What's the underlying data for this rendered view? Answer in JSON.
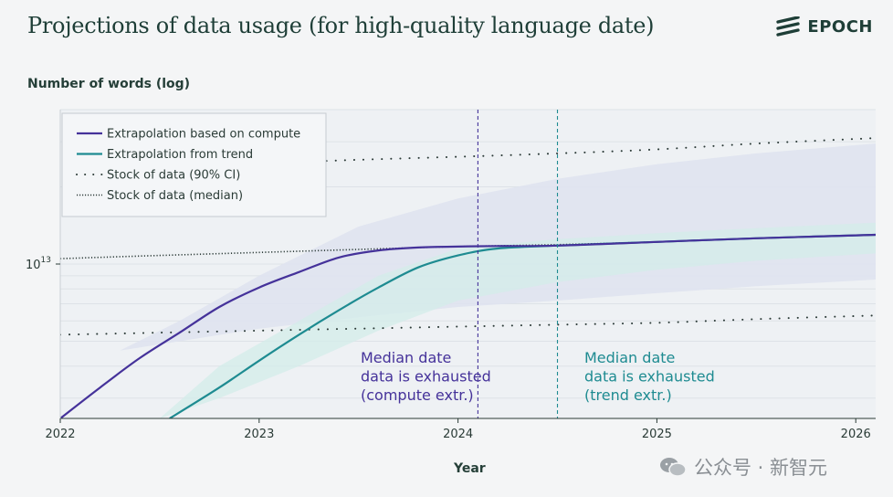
{
  "header": {
    "title": "Projections of data usage (for high-quality language date)",
    "brand": "EPOCH"
  },
  "watermark": {
    "text": "公众号 · 新智元"
  },
  "colors": {
    "compute": "#45329a",
    "trend": "#1e8b91",
    "stock": "#2b3a37",
    "band": "#d7dee8",
    "plot_bg": "#eef1f4"
  },
  "chart_data": {
    "type": "line",
    "title": "Projections of data usage (for high-quality language date)",
    "ylabel": "Number of words (log)",
    "xlabel": "Year",
    "xlim": [
      2022,
      2026.1
    ],
    "x_ticks": [
      2022,
      2023,
      2024,
      2025,
      2026
    ],
    "y_scale": "log",
    "y_tick_label": "10",
    "y_tick_exponent": "13",
    "ylim": [
      2500000000000.0,
      40000000000000.0
    ],
    "grid": "horizontal minor",
    "legend_position": "top-left",
    "legend": [
      {
        "label": "Extrapolation based on compute",
        "style": "solid",
        "color_key": "compute"
      },
      {
        "label": "Extrapolation from trend",
        "style": "solid",
        "color_key": "trend"
      },
      {
        "label": "Stock of data (90% CI)",
        "style": "dotted-sparse",
        "color_key": "stock"
      },
      {
        "label": "Stock of data (median)",
        "style": "dotted-dense",
        "color_key": "stock"
      }
    ],
    "series": [
      {
        "name": "Extrapolation based on compute",
        "x": [
          2022.0,
          2022.2,
          2022.4,
          2022.6,
          2022.8,
          2023.0,
          2023.2,
          2023.4,
          2023.6,
          2023.8,
          2024.0,
          2024.2,
          2024.5,
          2025.0,
          2025.5,
          2026.1
        ],
        "y": [
          2500000000000.0,
          3300000000000.0,
          4300000000000.0,
          5400000000000.0,
          6800000000000.0,
          8100000000000.0,
          9300000000000.0,
          10600000000000.0,
          11300000000000.0,
          11600000000000.0,
          11700000000000.0,
          11750000000000.0,
          11800000000000.0,
          12200000000000.0,
          12600000000000.0,
          13000000000000.0
        ]
      },
      {
        "name": "Extrapolation from trend",
        "x": [
          2022.55,
          2022.8,
          2023.0,
          2023.2,
          2023.4,
          2023.6,
          2023.8,
          2024.0,
          2024.2,
          2024.5,
          2025.0,
          2025.5,
          2026.1
        ],
        "y": [
          2500000000000.0,
          3300000000000.0,
          4200000000000.0,
          5300000000000.0,
          6600000000000.0,
          8100000000000.0,
          9700000000000.0,
          10800000000000.0,
          11500000000000.0,
          11800000000000.0,
          12200000000000.0,
          12600000000000.0,
          13000000000000.0
        ]
      },
      {
        "name": "Stock of data (median)",
        "x": [
          2022.0,
          2022.5,
          2023.0,
          2023.5,
          2024.0,
          2024.5,
          2025.0,
          2025.5,
          2026.1
        ],
        "y": [
          10500000000000.0,
          10800000000000.0,
          11100000000000.0,
          11400000000000.0,
          11700000000000.0,
          11900000000000.0,
          12200000000000.0,
          12600000000000.0,
          13000000000000.0
        ]
      },
      {
        "name": "Stock of data (90% CI) lower",
        "x": [
          2022.0,
          2022.5,
          2023.0,
          2023.5,
          2024.0,
          2024.5,
          2025.0,
          2025.5,
          2026.1
        ],
        "y": [
          5300000000000.0,
          5400000000000.0,
          5500000000000.0,
          5600000000000.0,
          5700000000000.0,
          5800000000000.0,
          5900000000000.0,
          6100000000000.0,
          6300000000000.0
        ]
      },
      {
        "name": "Stock of data (90% CI) upper",
        "x": [
          2023.2,
          2023.5,
          2024.0,
          2024.5,
          2025.0,
          2025.5,
          2026.1
        ],
        "y": [
          25000000000000.0,
          25500000000000.0,
          26200000000000.0,
          27000000000000.0,
          28000000000000.0,
          29500000000000.0,
          31000000000000.0
        ]
      }
    ],
    "ci_band_compute": {
      "x": [
        2022.3,
        2022.6,
        2023.0,
        2023.5,
        2024.0,
        2024.5,
        2025.0,
        2025.5,
        2026.1
      ],
      "low": [
        4600000000000.0,
        5000000000000.0,
        5600000000000.0,
        6200000000000.0,
        6800000000000.0,
        7200000000000.0,
        7700000000000.0,
        8200000000000.0,
        8700000000000.0
      ],
      "high": [
        4600000000000.0,
        6000000000000.0,
        9000000000000.0,
        14000000000000.0,
        18000000000000.0,
        21500000000000.0,
        24500000000000.0,
        27000000000000.0,
        29500000000000.0
      ]
    },
    "ci_band_trend": {
      "x": [
        2022.5,
        2022.8,
        2023.2,
        2023.6,
        2024.0,
        2024.5,
        2025.0,
        2025.5,
        2026.1
      ],
      "low": [
        2500000000000.0,
        3000000000000.0,
        4000000000000.0,
        5500000000000.0,
        7200000000000.0,
        8500000000000.0,
        9500000000000.0,
        10300000000000.0,
        11000000000000.0
      ],
      "high": [
        2500000000000.0,
        4000000000000.0,
        6000000000000.0,
        9000000000000.0,
        11500000000000.0,
        12500000000000.0,
        13200000000000.0,
        13800000000000.0,
        14500000000000.0
      ]
    },
    "markers": [
      {
        "x": 2024.1,
        "color_key": "compute",
        "lines": [
          "Median date",
          "data is exhausted",
          "(compute extr.)"
        ]
      },
      {
        "x": 2024.5,
        "color_key": "trend",
        "lines": [
          "Median date",
          "data is exhausted",
          "(trend extr.)"
        ]
      }
    ]
  }
}
